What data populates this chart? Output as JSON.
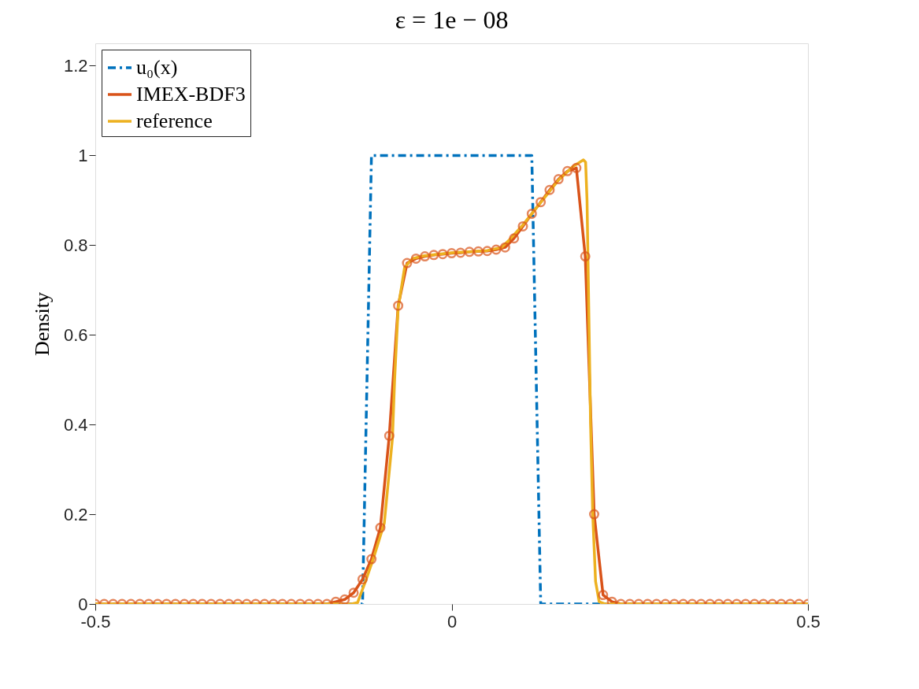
{
  "chart_data": {
    "type": "line",
    "title": "ε = 1e − 08",
    "ylabel": "Density",
    "xlim": [
      -0.5,
      0.5
    ],
    "xticks": [
      -0.5,
      0,
      0.5
    ],
    "ylim": [
      0,
      1.25
    ],
    "yticks": [
      0,
      0.2,
      0.4,
      0.6,
      0.8,
      1,
      1.2
    ],
    "grid": false,
    "legend": "top left",
    "series": [
      {
        "name": "u₀(x)",
        "color": "#0072bd",
        "line_style": "dashdot",
        "marker": "none",
        "x": [
          -0.5,
          -0.125,
          -0.1125,
          0.1125,
          0.125,
          0.5
        ],
        "values": [
          0,
          0,
          1,
          1,
          0,
          0
        ]
      },
      {
        "name": "IMEX-BDF3",
        "color": "#d95319",
        "line_style": "solid",
        "marker": "circle",
        "x": [
          -0.5,
          -0.4875,
          -0.475,
          -0.4625,
          -0.45,
          -0.4375,
          -0.425,
          -0.4125,
          -0.4,
          -0.3875,
          -0.375,
          -0.3625,
          -0.35,
          -0.3375,
          -0.325,
          -0.3125,
          -0.3,
          -0.2875,
          -0.275,
          -0.2625,
          -0.25,
          -0.2375,
          -0.225,
          -0.2125,
          -0.2,
          -0.1875,
          -0.175,
          -0.1625,
          -0.15,
          -0.1375,
          -0.125,
          -0.1125,
          -0.1,
          -0.0875,
          -0.075,
          -0.0625,
          -0.05,
          -0.0375,
          -0.025,
          -0.0125,
          0,
          0.0125,
          0.025,
          0.0375,
          0.05,
          0.0625,
          0.075,
          0.0875,
          0.1,
          0.1125,
          0.125,
          0.1375,
          0.15,
          0.1625,
          0.175,
          0.1875,
          0.2,
          0.2125,
          0.225,
          0.2375,
          0.25,
          0.2625,
          0.275,
          0.2875,
          0.3,
          0.3125,
          0.325,
          0.3375,
          0.35,
          0.3625,
          0.375,
          0.3875,
          0.4,
          0.4125,
          0.425,
          0.4375,
          0.45,
          0.4625,
          0.475,
          0.4875,
          0.5
        ],
        "values": [
          0,
          0,
          0,
          0,
          0,
          0,
          0,
          0,
          0,
          0,
          0,
          0,
          0,
          0,
          0,
          0,
          0,
          0,
          0,
          0,
          0,
          0,
          0,
          0,
          0,
          0,
          0,
          0.005,
          0.01,
          0.025,
          0.055,
          0.1,
          0.17,
          0.375,
          0.665,
          0.76,
          0.77,
          0.775,
          0.778,
          0.78,
          0.782,
          0.783,
          0.785,
          0.786,
          0.787,
          0.79,
          0.795,
          0.815,
          0.842,
          0.87,
          0.896,
          0.923,
          0.947,
          0.965,
          0.972,
          0.775,
          0.2,
          0.02,
          0.005,
          0,
          0,
          0,
          0,
          0,
          0,
          0,
          0,
          0,
          0,
          0,
          0,
          0,
          0,
          0,
          0,
          0,
          0,
          0,
          0,
          0,
          0
        ]
      },
      {
        "name": "reference",
        "color": "#edb120",
        "line_style": "solid",
        "marker": "none",
        "x": [
          -0.5,
          -0.14,
          -0.132,
          -0.121,
          -0.11,
          -0.0945,
          -0.083,
          -0.08,
          -0.075,
          -0.066,
          -0.055,
          -0.04,
          0,
          0.05,
          0.07,
          0.08,
          0.1,
          0.125,
          0.15,
          0.17,
          0.185,
          0.188,
          0.19,
          0.195,
          0.198,
          0.202,
          0.207,
          0.215,
          0.5
        ],
        "values": [
          0,
          0,
          0.003,
          0.05,
          0.1,
          0.18,
          0.37,
          0.5,
          0.66,
          0.75,
          0.77,
          0.776,
          0.783,
          0.788,
          0.795,
          0.81,
          0.845,
          0.895,
          0.945,
          0.975,
          0.99,
          0.985,
          0.9,
          0.4,
          0.2,
          0.05,
          0.005,
          0,
          0
        ]
      }
    ]
  }
}
